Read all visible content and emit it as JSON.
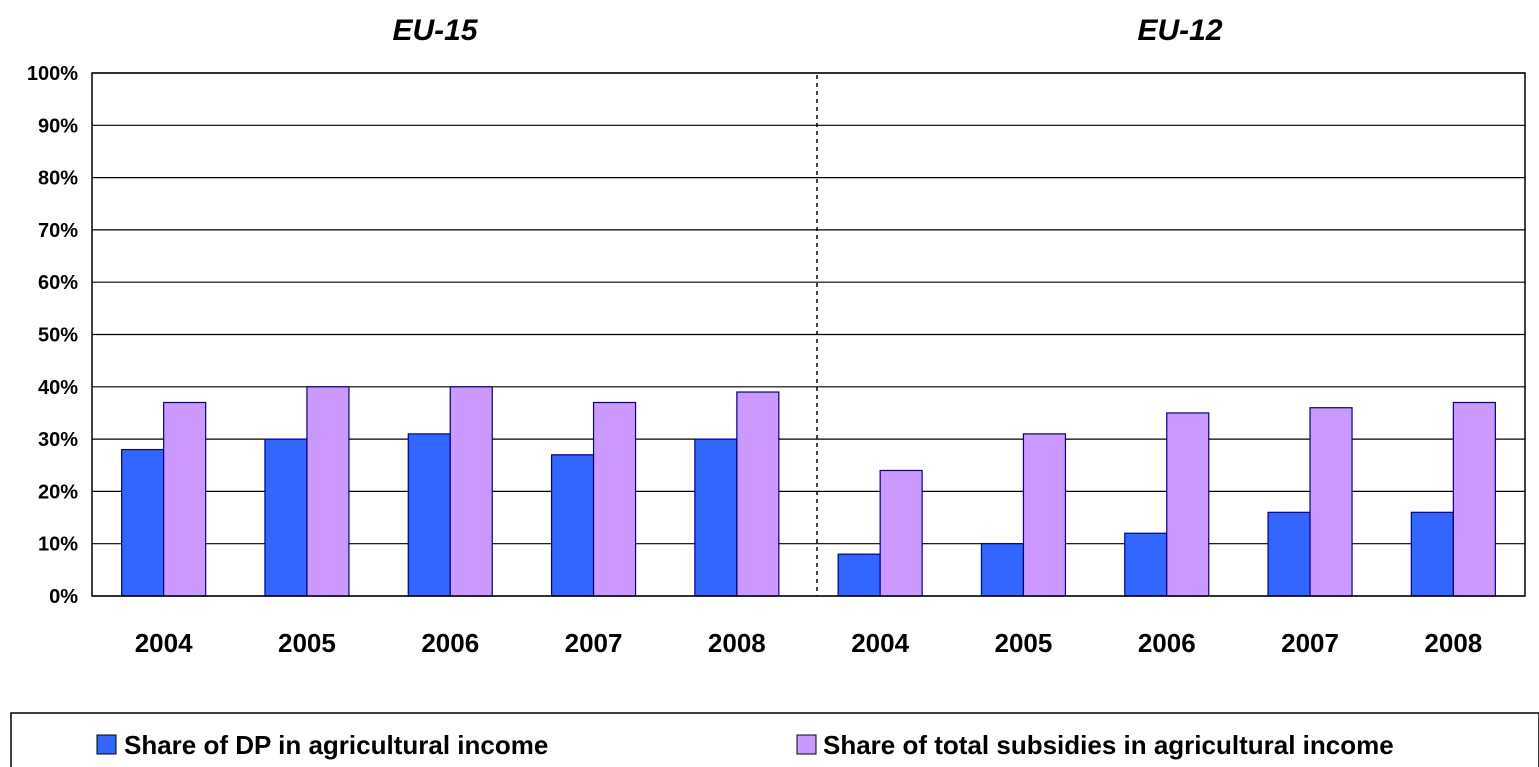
{
  "chart_data": {
    "type": "bar",
    "groups": [
      {
        "title": "EU-15",
        "categories": [
          "2004",
          "2005",
          "2006",
          "2007",
          "2008"
        ]
      },
      {
        "title": "EU-12",
        "categories": [
          "2004",
          "2005",
          "2006",
          "2007",
          "2008"
        ]
      }
    ],
    "categories": [
      "2004",
      "2005",
      "2006",
      "2007",
      "2008",
      "2004",
      "2005",
      "2006",
      "2007",
      "2008"
    ],
    "series": [
      {
        "name": "Share of DP in agricultural income",
        "color": "#3366ff",
        "values": [
          28,
          30,
          31,
          27,
          30,
          8,
          10,
          12,
          16,
          16
        ]
      },
      {
        "name": "Share of total subsidies in agricultural income",
        "color": "#cc99ff",
        "values": [
          37,
          40,
          40,
          37,
          39,
          24,
          31,
          35,
          36,
          37
        ]
      }
    ],
    "ylim": [
      0,
      100
    ],
    "ytick_labels": [
      "0%",
      "10%",
      "20%",
      "30%",
      "40%",
      "50%",
      "60%",
      "70%",
      "80%",
      "90%",
      "100%"
    ],
    "grid": true,
    "legend_position": "bottom"
  }
}
